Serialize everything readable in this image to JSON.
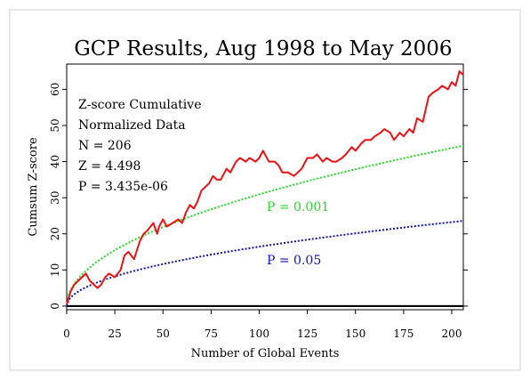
{
  "chart_data": {
    "type": "line",
    "title": "GCP Results, Aug 1998 to May 2006",
    "xlabel": "Number of Global Events",
    "ylabel": "Cumsum Z-score",
    "xlim": [
      0,
      206
    ],
    "ylim": [
      -1,
      67
    ],
    "x_ticks": [
      "0",
      "25",
      "50",
      "75",
      "100",
      "125",
      "150",
      "175",
      "200"
    ],
    "y_ticks": [
      "0",
      "10",
      "20",
      "30",
      "40",
      "50",
      "60"
    ],
    "grid": false,
    "stats": {
      "line1": "Z-score Cumulative",
      "line2": "Normalized Data",
      "line3": "N = 206",
      "line4": "Z = 4.498",
      "line5": "P = 3.435e-06"
    },
    "curve_labels": {
      "p001": "P = 0.001",
      "p05": "P = 0.05"
    },
    "colors": {
      "cumsum": "#ee1111",
      "p001": "#22dd22",
      "p05": "#1111bb",
      "baseline": "#000000"
    },
    "series": [
      {
        "name": "Cumulative Z-score",
        "x": [
          0,
          2,
          4,
          6,
          8,
          10,
          12,
          14,
          16,
          18,
          20,
          22,
          25,
          28,
          30,
          32,
          35,
          38,
          40,
          42,
          45,
          47,
          48,
          50,
          52,
          55,
          58,
          60,
          62,
          64,
          66,
          68,
          70,
          72,
          74,
          76,
          78,
          80,
          83,
          85,
          88,
          90,
          93,
          95,
          98,
          100,
          102,
          105,
          108,
          110,
          112,
          115,
          118,
          120,
          122,
          125,
          128,
          130,
          133,
          135,
          138,
          140,
          143,
          145,
          148,
          150,
          153,
          155,
          158,
          160,
          163,
          165,
          168,
          170,
          173,
          175,
          178,
          180,
          182,
          185,
          188,
          190,
          193,
          195,
          198,
          200,
          202,
          204,
          206
        ],
        "values": [
          0.5,
          4,
          6,
          7,
          8,
          9,
          7,
          6,
          5,
          6,
          8,
          9,
          8,
          10,
          14,
          15,
          13,
          18,
          20,
          21,
          23,
          20,
          22,
          24,
          22,
          23,
          24,
          23,
          26,
          28,
          27,
          29,
          32,
          33,
          34,
          36,
          35,
          35,
          38,
          37,
          40,
          41,
          40,
          41,
          40,
          41,
          43,
          40,
          40,
          39,
          37,
          37,
          36,
          37,
          38,
          41,
          41,
          42,
          40,
          41,
          40,
          40,
          41,
          42,
          44,
          43,
          45,
          46,
          46,
          47,
          48,
          49,
          48,
          46,
          48,
          47,
          49,
          48,
          52,
          51,
          58,
          59,
          60,
          61,
          60,
          62,
          61,
          65,
          64
        ]
      },
      {
        "name": "P = 0.001",
        "formula": "3.09*sqrt(n)",
        "x": [
          0,
          206
        ],
        "values": [
          0,
          44.4
        ]
      },
      {
        "name": "P = 0.05",
        "formula": "1.645*sqrt(n)",
        "x": [
          0,
          206
        ],
        "values": [
          0,
          23.6
        ]
      }
    ]
  }
}
